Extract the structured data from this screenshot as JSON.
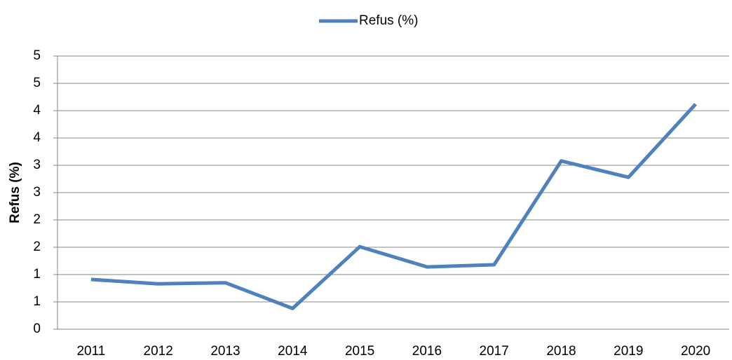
{
  "chart_data": {
    "type": "line",
    "ylabel": "Refus (%)",
    "categories": [
      "2011",
      "2012",
      "2013",
      "2014",
      "2015",
      "2016",
      "2017",
      "2018",
      "2019",
      "2020"
    ],
    "series": [
      {
        "name": "Refus (%)",
        "color": "#4f81bd",
        "values": [
          0.91,
          0.83,
          0.85,
          0.38,
          1.51,
          1.14,
          1.18,
          3.08,
          2.78,
          4.12
        ]
      }
    ],
    "ylim": [
      0,
      5
    ],
    "yticks": [
      0,
      {
        "value": 0.5,
        "label": "1"
      },
      1,
      {
        "value": 1.5,
        "label": "2"
      },
      2,
      {
        "value": 2.5,
        "label": "3"
      },
      3,
      {
        "value": 3.5,
        "label": "4"
      },
      4,
      {
        "value": 4.5,
        "label": "5"
      },
      5
    ],
    "grid": true,
    "legend": "top"
  }
}
